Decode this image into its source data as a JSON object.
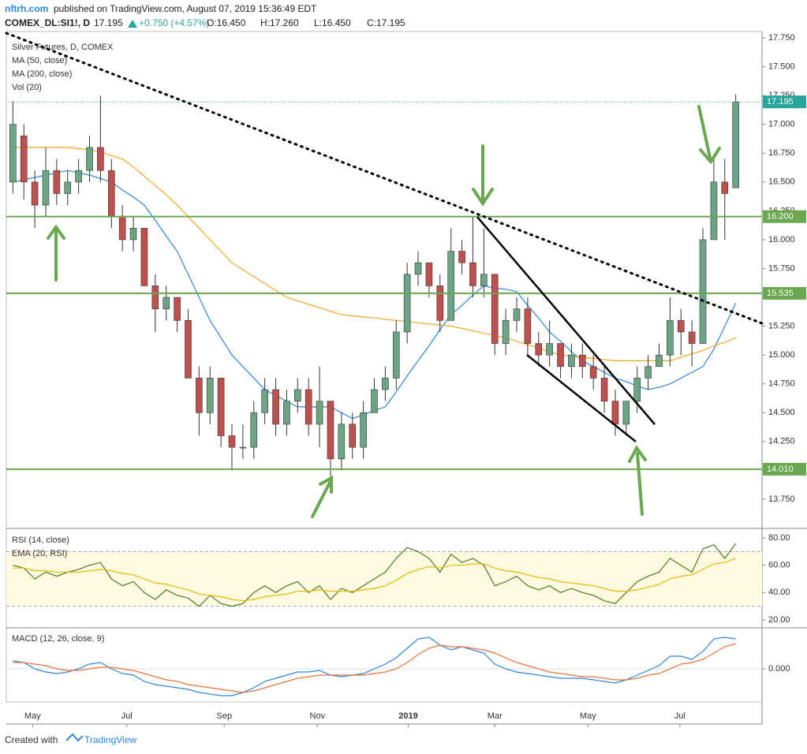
{
  "header": {
    "publisher": "nftrh.com",
    "published": "published on TradingView.com, August 07, 2019 15:36:49 EDT",
    "symbol": "COMEX_DL:SI1!, D",
    "last": "17.195",
    "change": "+0.750 (+4.57%)",
    "ohlc": [
      "O:16.450",
      "H:17.260",
      "L:16.450",
      "C:17.195"
    ],
    "footer": "Created with",
    "brand": "TradingView"
  },
  "chart_data": [
    {
      "type": "candlestick",
      "title": "Silver Futures, D, COMEX",
      "extra_legend": [
        "Vol (20)"
      ],
      "ylim": [
        13.51,
        17.805
      ],
      "yticks": [
        {
          "value": 13.75,
          "label": "13.750"
        },
        {
          "value": 14,
          "label": "14.000"
        },
        {
          "value": 14.25,
          "label": "14.250"
        },
        {
          "value": 14.5,
          "label": "14.500"
        },
        {
          "value": 14.75,
          "label": "14.750"
        },
        {
          "value": 15,
          "label": "15.000"
        },
        {
          "value": 15.25,
          "label": "15.250"
        },
        {
          "value": 15.5,
          "label": "15.500"
        },
        {
          "value": 15.75,
          "label": "15.750"
        },
        {
          "value": 16,
          "label": "16.000"
        },
        {
          "value": 16.25,
          "label": "16.250"
        },
        {
          "value": 16.5,
          "label": "16.500"
        },
        {
          "value": 16.75,
          "label": "16.750"
        },
        {
          "value": 17,
          "label": "17.000"
        },
        {
          "value": 17.25,
          "label": "17.250"
        },
        {
          "value": 17.5,
          "label": "17.500"
        },
        {
          "value": 17.75,
          "label": "17.750"
        }
      ],
      "up_color": "#6ba583",
      "down_color": "#c0504d",
      "levels": [
        {
          "value": 16.2,
          "label": "16.200"
        },
        {
          "value": 15.535,
          "label": "15.535"
        },
        {
          "value": 14.01,
          "label": "14.010"
        }
      ],
      "level_color": "#6aa84f",
      "last": {
        "value": 17.195,
        "label": "17.195"
      },
      "last_color": "#26a69a",
      "ohlc": [
        [
          16.5,
          17.2,
          16.4,
          17.0
        ],
        [
          16.9,
          17.0,
          16.35,
          16.5
        ],
        [
          16.5,
          16.6,
          16.1,
          16.3
        ],
        [
          16.3,
          16.8,
          16.2,
          16.6
        ],
        [
          16.6,
          16.7,
          16.3,
          16.4
        ],
        [
          16.4,
          16.6,
          16.3,
          16.5
        ],
        [
          16.5,
          16.7,
          16.4,
          16.6
        ],
        [
          16.6,
          16.9,
          16.5,
          16.8
        ],
        [
          16.8,
          17.25,
          16.5,
          16.6
        ],
        [
          16.6,
          16.7,
          16.1,
          16.2
        ],
        [
          16.2,
          16.3,
          15.9,
          16.0
        ],
        [
          16.0,
          16.2,
          15.9,
          16.1
        ],
        [
          16.1,
          16.1,
          15.6,
          15.6
        ],
        [
          15.6,
          15.7,
          15.2,
          15.4
        ],
        [
          15.4,
          15.6,
          15.3,
          15.5
        ],
        [
          15.5,
          15.5,
          15.2,
          15.3
        ],
        [
          15.3,
          15.4,
          14.8,
          14.8
        ],
        [
          14.8,
          14.9,
          14.3,
          14.5
        ],
        [
          14.5,
          14.9,
          14.4,
          14.8
        ],
        [
          14.8,
          14.8,
          14.2,
          14.3
        ],
        [
          14.3,
          14.4,
          14.0,
          14.2
        ],
        [
          14.2,
          14.4,
          14.1,
          14.2
        ],
        [
          14.2,
          14.6,
          14.1,
          14.5
        ],
        [
          14.5,
          14.8,
          14.4,
          14.7
        ],
        [
          14.7,
          14.8,
          14.3,
          14.4
        ],
        [
          14.4,
          14.7,
          14.3,
          14.6
        ],
        [
          14.6,
          14.8,
          14.5,
          14.7
        ],
        [
          14.7,
          14.8,
          14.3,
          14.4
        ],
        [
          14.4,
          14.9,
          14.2,
          14.6
        ],
        [
          14.6,
          14.6,
          13.95,
          14.1
        ],
        [
          14.1,
          14.5,
          14.0,
          14.4
        ],
        [
          14.4,
          14.5,
          14.1,
          14.2
        ],
        [
          14.2,
          14.6,
          14.1,
          14.5
        ],
        [
          14.5,
          14.8,
          14.5,
          14.7
        ],
        [
          14.7,
          14.9,
          14.6,
          14.8
        ],
        [
          14.8,
          15.3,
          14.7,
          15.2
        ],
        [
          15.2,
          15.8,
          15.1,
          15.7
        ],
        [
          15.7,
          15.9,
          15.6,
          15.8
        ],
        [
          15.8,
          15.8,
          15.5,
          15.6
        ],
        [
          15.6,
          15.7,
          15.2,
          15.3
        ],
        [
          15.3,
          16.1,
          15.3,
          15.9
        ],
        [
          15.9,
          16.0,
          15.7,
          15.8
        ],
        [
          15.8,
          16.2,
          15.5,
          15.6
        ],
        [
          15.6,
          16.1,
          15.5,
          15.7
        ],
        [
          15.7,
          15.7,
          15.0,
          15.1
        ],
        [
          15.1,
          15.4,
          15.0,
          15.3
        ],
        [
          15.3,
          15.5,
          15.2,
          15.4
        ],
        [
          15.4,
          15.5,
          15.0,
          15.1
        ],
        [
          15.1,
          15.2,
          14.9,
          15.0
        ],
        [
          15.0,
          15.3,
          14.9,
          15.1
        ],
        [
          15.1,
          15.1,
          14.8,
          14.9
        ],
        [
          14.9,
          15.1,
          14.8,
          15.0
        ],
        [
          15.0,
          15.1,
          14.8,
          14.9
        ],
        [
          14.9,
          15.0,
          14.7,
          14.8
        ],
        [
          14.8,
          14.9,
          14.5,
          14.6
        ],
        [
          14.6,
          14.7,
          14.3,
          14.4
        ],
        [
          14.4,
          14.6,
          14.3,
          14.6
        ],
        [
          14.6,
          14.9,
          14.5,
          14.8
        ],
        [
          14.8,
          15.0,
          14.7,
          14.9
        ],
        [
          14.9,
          15.1,
          14.9,
          15.0
        ],
        [
          15.0,
          15.5,
          14.9,
          15.3
        ],
        [
          15.3,
          15.4,
          15.0,
          15.2
        ],
        [
          15.2,
          15.3,
          14.9,
          15.1
        ],
        [
          15.1,
          16.1,
          15.1,
          16.0
        ],
        [
          16.0,
          16.7,
          16.0,
          16.5
        ],
        [
          16.5,
          16.7,
          16.0,
          16.4
        ],
        [
          16.45,
          17.26,
          16.45,
          17.195
        ]
      ],
      "series": [
        {
          "name": "MA (50, close)",
          "color": "#2e86de",
          "values": [
            16.5,
            16.52,
            16.54,
            16.56,
            16.58,
            16.6,
            16.58,
            16.56,
            16.53,
            16.5,
            16.43,
            16.37,
            16.3,
            16.17,
            16.03,
            15.9,
            15.7,
            15.5,
            15.3,
            15.15,
            15.0,
            14.9,
            14.8,
            14.7,
            14.65,
            14.6,
            14.55,
            14.55,
            14.55,
            14.55,
            14.5,
            14.45,
            14.48,
            14.52,
            14.55,
            14.68,
            14.82,
            14.95,
            15.08,
            15.22,
            15.35,
            15.43,
            15.52,
            15.6,
            15.58,
            15.57,
            15.55,
            15.43,
            15.32,
            15.2,
            15.12,
            15.03,
            14.95,
            14.9,
            14.85,
            14.8,
            14.77,
            14.73,
            14.7,
            14.72,
            14.75,
            14.8,
            14.85,
            14.9,
            15.05,
            15.25,
            15.45
          ]
        },
        {
          "name": "MA (200, close)",
          "color": "#f5a623",
          "values": [
            16.8,
            16.8,
            16.8,
            16.8,
            16.8,
            16.8,
            16.79,
            16.78,
            16.76,
            16.73,
            16.7,
            16.63,
            16.55,
            16.47,
            16.39,
            16.3,
            16.2,
            16.1,
            16.0,
            15.9,
            15.8,
            15.74,
            15.68,
            15.62,
            15.56,
            15.5,
            15.47,
            15.44,
            15.41,
            15.38,
            15.35,
            15.34,
            15.33,
            15.32,
            15.31,
            15.3,
            15.29,
            15.28,
            15.27,
            15.26,
            15.25,
            15.23,
            15.21,
            15.19,
            15.17,
            15.15,
            15.12,
            15.09,
            15.06,
            15.03,
            15.0,
            14.99,
            14.98,
            14.97,
            14.96,
            14.95,
            14.95,
            14.95,
            14.95,
            14.95,
            14.95,
            14.98,
            15.01,
            15.04,
            15.08,
            15.11,
            15.15
          ]
        }
      ]
    },
    {
      "type": "line",
      "ylim": [
        14.8,
        85.8
      ],
      "band": [
        30,
        70
      ],
      "yticks": [
        {
          "value": 20,
          "label": "20.00"
        },
        {
          "value": 40,
          "label": "40.00"
        },
        {
          "value": 60,
          "label": "60.00"
        },
        {
          "value": 80,
          "label": "80.00"
        }
      ],
      "series": [
        {
          "name": "RSI (14, close)",
          "color": "#4a7a2a",
          "values": [
            60,
            58,
            50,
            55,
            52,
            55,
            57,
            60,
            62,
            50,
            45,
            48,
            40,
            35,
            42,
            38,
            36,
            30,
            38,
            32,
            30,
            32,
            40,
            45,
            40,
            45,
            48,
            40,
            45,
            35,
            43,
            40,
            45,
            50,
            55,
            65,
            73,
            70,
            65,
            55,
            68,
            62,
            65,
            60,
            45,
            48,
            52,
            45,
            42,
            45,
            40,
            43,
            40,
            38,
            34,
            32,
            40,
            48,
            52,
            55,
            65,
            60,
            55,
            72,
            75,
            65,
            76
          ]
        },
        {
          "name": "EMA (20, RSI)",
          "color": "#e6b800",
          "values": [
            58,
            58,
            56,
            56,
            55,
            55,
            55,
            56,
            57,
            56,
            54,
            53,
            50,
            47,
            46,
            44,
            42,
            39,
            38,
            37,
            35,
            34,
            35,
            37,
            38,
            39,
            41,
            41,
            42,
            41,
            41,
            41,
            42,
            43,
            45,
            49,
            54,
            57,
            59,
            58,
            60,
            60,
            61,
            61,
            58,
            56,
            55,
            53,
            51,
            50,
            48,
            47,
            46,
            45,
            43,
            41,
            41,
            42,
            44,
            46,
            50,
            52,
            53,
            57,
            61,
            62,
            65
          ]
        }
      ]
    },
    {
      "type": "line",
      "title": "MACD (12, 26, close, 9)",
      "ylim": [
        -0.21,
        0.25
      ],
      "yticks": [
        {
          "value": 0,
          "label": "0.000"
        }
      ],
      "xlim": [
        -0.6,
        68.4
      ],
      "xticks": [
        {
          "value": 1.8,
          "label": "May"
        },
        {
          "value": 10.4,
          "label": "Jul"
        },
        {
          "value": 19.3,
          "label": "Sep"
        },
        {
          "value": 27.8,
          "label": "Nov"
        },
        {
          "value": 36.1,
          "label": "2019"
        },
        {
          "value": 44,
          "label": "Mar"
        },
        {
          "value": 52.5,
          "label": "May"
        },
        {
          "value": 60.9,
          "label": "Jul"
        }
      ],
      "series": [
        {
          "color": "#2e86de",
          "values": [
            0.05,
            0.04,
            0.0,
            -0.02,
            -0.03,
            -0.02,
            0.0,
            0.03,
            0.04,
            0.0,
            -0.03,
            -0.04,
            -0.08,
            -0.1,
            -0.11,
            -0.12,
            -0.13,
            -0.15,
            -0.16,
            -0.17,
            -0.17,
            -0.15,
            -0.12,
            -0.08,
            -0.06,
            -0.04,
            -0.02,
            -0.02,
            -0.01,
            -0.04,
            -0.05,
            -0.04,
            -0.03,
            0.0,
            0.03,
            0.07,
            0.13,
            0.19,
            0.2,
            0.15,
            0.12,
            0.14,
            0.12,
            0.1,
            0.03,
            0.0,
            -0.02,
            -0.03,
            -0.04,
            -0.05,
            -0.06,
            -0.06,
            -0.06,
            -0.07,
            -0.08,
            -0.09,
            -0.07,
            -0.04,
            -0.01,
            0.02,
            0.08,
            0.08,
            0.06,
            0.11,
            0.19,
            0.2,
            0.19
          ]
        },
        {
          "color": "#e8743b",
          "values": [
            0.04,
            0.04,
            0.03,
            0.02,
            0.0,
            -0.01,
            -0.01,
            0.0,
            0.01,
            0.01,
            0.0,
            -0.01,
            -0.03,
            -0.05,
            -0.07,
            -0.08,
            -0.1,
            -0.11,
            -0.12,
            -0.13,
            -0.14,
            -0.15,
            -0.14,
            -0.12,
            -0.1,
            -0.08,
            -0.06,
            -0.05,
            -0.04,
            -0.04,
            -0.04,
            -0.04,
            -0.04,
            -0.03,
            -0.02,
            0.0,
            0.04,
            0.09,
            0.13,
            0.15,
            0.14,
            0.14,
            0.13,
            0.12,
            0.1,
            0.07,
            0.04,
            0.02,
            0.0,
            -0.02,
            -0.03,
            -0.04,
            -0.05,
            -0.05,
            -0.06,
            -0.07,
            -0.07,
            -0.06,
            -0.04,
            -0.03,
            0.0,
            0.03,
            0.04,
            0.06,
            0.1,
            0.14,
            0.16
          ]
        }
      ]
    }
  ]
}
